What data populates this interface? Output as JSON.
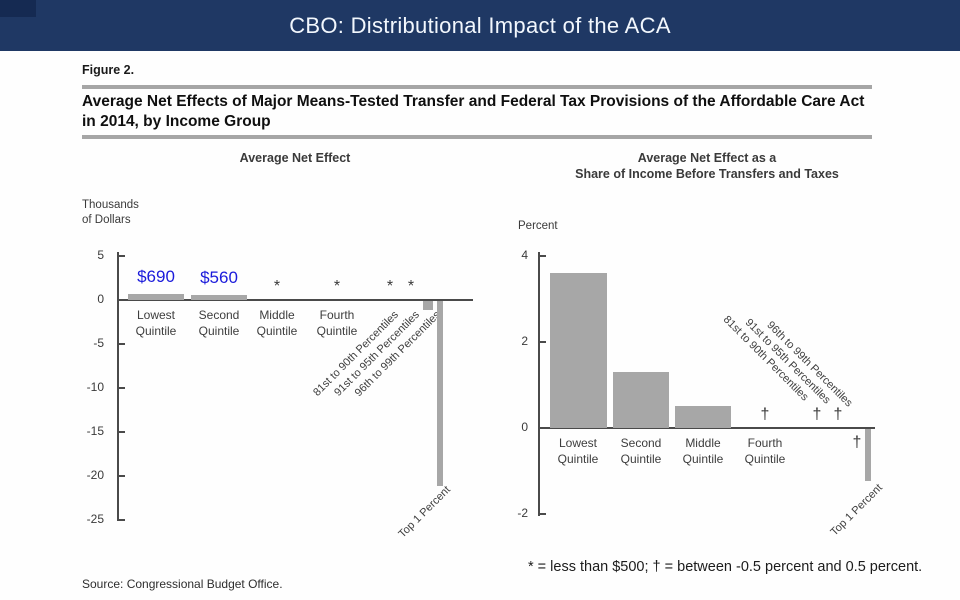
{
  "header": {
    "title": "CBO: Distributional Impact of the ACA",
    "bg_color": "#1f3864",
    "corner_color": "#152a52"
  },
  "figure": {
    "label": "Figure 2.",
    "title_line1": "Average Net Effects of Major Means-Tested Transfer and Federal Tax Provisions of the Affordable Care Act",
    "title_line2": "in 2014, by Income Group",
    "footnote": "* = less than $500; † = between -0.5 percent and 0.5 percent.",
    "source": "Source: Congressional Budget Office."
  },
  "colors": {
    "bar": "#a7a7a7",
    "axis": "#4a4a4a",
    "rule": "#a6a6a6",
    "annotation_blue": "#1b1bdb"
  },
  "chart_data": [
    {
      "type": "bar",
      "title": "Average Net Effect",
      "ylabel": "Thousands\nof Dollars",
      "ylim": [
        -25,
        5
      ],
      "yticks": [
        5,
        0,
        -5,
        -10,
        -15,
        -20,
        -25
      ],
      "grid": false,
      "legend": false,
      "marker_note": "* = less than $500",
      "points": [
        {
          "label": "Lowest Quintile",
          "value": 0.69,
          "annotation": "$690"
        },
        {
          "label": "Second Quintile",
          "value": 0.56,
          "annotation": "$560"
        },
        {
          "label": "Middle Quintile",
          "marker": "*"
        },
        {
          "label": "Fourth Quintile",
          "marker": "*"
        },
        {
          "label": "81st to 90th Percentiles",
          "marker": "*"
        },
        {
          "label": "91st to 95th Percentiles",
          "marker": "*"
        },
        {
          "label": "96th to 99th Percentiles",
          "value": -1.0
        },
        {
          "label": "Top 1 Percent",
          "value": -21.0
        }
      ]
    },
    {
      "type": "bar",
      "title": "Average Net Effect as a\nShare of Income Before Transfers and Taxes",
      "ylabel": "Percent",
      "ylim": [
        -2,
        4
      ],
      "yticks": [
        4,
        2,
        0,
        -2
      ],
      "grid": false,
      "legend": false,
      "marker_note": "† = between -0.5 percent and 0.5 percent",
      "points": [
        {
          "label": "Lowest Quintile",
          "value": 3.6
        },
        {
          "label": "Second Quintile",
          "value": 1.3
        },
        {
          "label": "Middle Quintile",
          "value": 0.5
        },
        {
          "label": "Fourth Quintile",
          "marker": "†"
        },
        {
          "label": "81st to 90th Percentiles",
          "marker": "†"
        },
        {
          "label": "91st to 95th Percentiles",
          "marker": "†"
        },
        {
          "label": "96th to 99th Percentiles",
          "marker": "†",
          "marker_position": "below"
        },
        {
          "label": "Top 1 Percent",
          "value": -1.2
        }
      ]
    }
  ]
}
